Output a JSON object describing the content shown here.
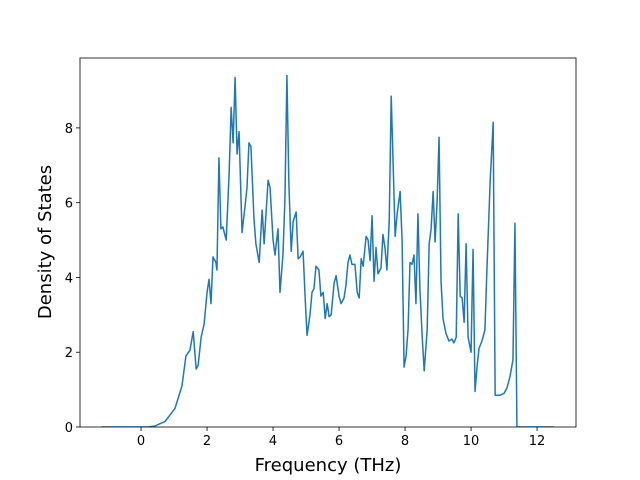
{
  "chart_data": {
    "type": "line",
    "xlabel": "Frequency (THz)",
    "ylabel": "Density of States",
    "x": [
      -1.2,
      0.2,
      0.4,
      0.73,
      1.03,
      1.24,
      1.36,
      1.48,
      1.58,
      1.67,
      1.73,
      1.82,
      1.91,
      2.0,
      2.06,
      2.12,
      2.18,
      2.27,
      2.3,
      2.36,
      2.42,
      2.48,
      2.58,
      2.67,
      2.73,
      2.79,
      2.85,
      2.91,
      2.97,
      3.06,
      3.15,
      3.21,
      3.27,
      3.33,
      3.42,
      3.48,
      3.58,
      3.67,
      3.73,
      3.85,
      3.91,
      4.0,
      4.06,
      4.15,
      4.21,
      4.3,
      4.36,
      4.42,
      4.48,
      4.55,
      4.61,
      4.7,
      4.76,
      4.82,
      4.91,
      4.97,
      5.03,
      5.12,
      5.18,
      5.24,
      5.3,
      5.39,
      5.45,
      5.52,
      5.58,
      5.64,
      5.7,
      5.76,
      5.85,
      5.91,
      6.0,
      6.06,
      6.15,
      6.21,
      6.27,
      6.33,
      6.39,
      6.48,
      6.55,
      6.61,
      6.67,
      6.73,
      6.82,
      6.88,
      6.94,
      7.0,
      7.06,
      7.12,
      7.18,
      7.27,
      7.33,
      7.39,
      7.45,
      7.52,
      7.58,
      7.64,
      7.7,
      7.76,
      7.85,
      7.91,
      7.97,
      8.03,
      8.09,
      8.15,
      8.21,
      8.27,
      8.33,
      8.39,
      8.45,
      8.52,
      8.58,
      8.67,
      8.73,
      8.79,
      8.85,
      8.91,
      8.97,
      9.03,
      9.09,
      9.15,
      9.24,
      9.33,
      9.42,
      9.48,
      9.55,
      9.61,
      9.67,
      9.73,
      9.79,
      9.85,
      9.91,
      10.0,
      10.06,
      10.12,
      10.18,
      10.24,
      10.33,
      10.42,
      10.48,
      10.58,
      10.67,
      10.73,
      10.88,
      11.0,
      11.09,
      11.18,
      11.27,
      11.33,
      11.39,
      12.5
    ],
    "series": [
      {
        "color": "#1f77b4",
        "values": [
          0,
          0,
          0.02,
          0.15,
          0.5,
          1.1,
          1.9,
          2.05,
          2.55,
          1.55,
          1.65,
          2.4,
          2.75,
          3.6,
          3.95,
          3.3,
          4.55,
          4.4,
          4.2,
          7.2,
          5.3,
          5.35,
          5.0,
          6.8,
          8.55,
          7.6,
          9.35,
          7.3,
          7.9,
          5.2,
          5.9,
          6.4,
          7.6,
          7.5,
          5.6,
          4.9,
          4.4,
          5.8,
          4.9,
          6.6,
          6.4,
          5.0,
          4.6,
          5.3,
          3.6,
          4.6,
          6.1,
          9.4,
          6.5,
          4.7,
          5.5,
          5.75,
          4.5,
          4.55,
          4.7,
          3.5,
          2.45,
          3.0,
          3.6,
          3.7,
          4.3,
          4.2,
          3.5,
          3.6,
          2.9,
          3.3,
          2.95,
          3.0,
          3.85,
          4.05,
          3.5,
          3.3,
          3.45,
          3.8,
          4.4,
          4.6,
          4.35,
          4.35,
          3.6,
          3.45,
          4.5,
          4.3,
          5.1,
          5.0,
          4.45,
          5.65,
          3.9,
          4.8,
          4.1,
          4.25,
          5.15,
          4.8,
          4.2,
          5.5,
          8.85,
          7.0,
          5.1,
          5.7,
          6.3,
          5.0,
          1.6,
          1.9,
          2.6,
          4.4,
          4.35,
          4.6,
          3.3,
          5.7,
          3.7,
          2.4,
          1.5,
          2.6,
          4.9,
          5.3,
          6.3,
          4.95,
          6.0,
          7.75,
          3.9,
          2.9,
          2.5,
          2.3,
          2.35,
          2.25,
          2.4,
          5.7,
          3.5,
          3.45,
          2.8,
          4.9,
          2.4,
          2.0,
          4.75,
          0.95,
          1.6,
          2.1,
          2.3,
          2.6,
          4.2,
          6.6,
          8.15,
          0.85,
          0.85,
          0.9,
          1.05,
          1.35,
          1.8,
          5.45,
          0,
          0
        ]
      }
    ],
    "xlim": [
      -1.85,
      13.18
    ],
    "ylim": [
      0,
      9.87
    ],
    "xticks": [
      0,
      2,
      4,
      6,
      8,
      10,
      12
    ],
    "yticks": [
      0,
      2,
      4,
      6,
      8
    ]
  }
}
